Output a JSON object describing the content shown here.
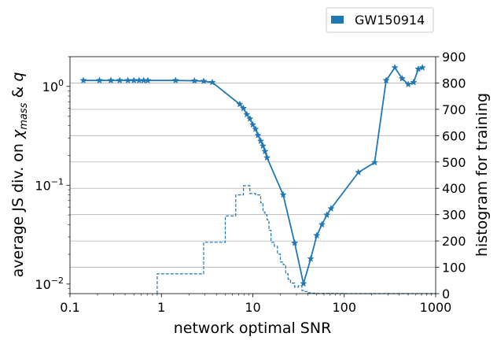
{
  "chart_data": {
    "type": "line",
    "legend": {
      "position": "top-right",
      "label": "GW150914"
    },
    "colors": {
      "series": "#1f77b4",
      "grid": "#b0b0b0",
      "axis": "#000000"
    },
    "xlabel": "network optimal SNR",
    "ylabel": "average JS div. on χmass & q",
    "ylabel_parts": {
      "prefix": "average JS div. on ",
      "symbol": "χ",
      "subscript": "mass",
      "suffix": " & ",
      "q": "q"
    },
    "y2label": "histogram for training",
    "x_scale": "log",
    "y_scale": "log",
    "xlim": [
      0.1,
      1000
    ],
    "ylim": [
      0.008,
      2.0
    ],
    "y2lim": [
      0,
      900
    ],
    "grid": {
      "y2_major": true,
      "x": false
    },
    "x_ticks": [
      {
        "value": 0.1,
        "label": "0.1"
      },
      {
        "value": 1,
        "label": "1"
      },
      {
        "value": 10,
        "label": "10"
      },
      {
        "value": 100,
        "label": "100"
      },
      {
        "value": 1000,
        "label": "1000"
      }
    ],
    "y_ticks": [
      {
        "value": 0.01,
        "base": "10",
        "exp": "−2"
      },
      {
        "value": 0.1,
        "base": "10",
        "exp": "−1"
      },
      {
        "value": 1,
        "base": "10",
        "exp": "0"
      }
    ],
    "y2_ticks": [
      {
        "value": 0,
        "label": "0"
      },
      {
        "value": 100,
        "label": "100"
      },
      {
        "value": 200,
        "label": "200"
      },
      {
        "value": 300,
        "label": "300"
      },
      {
        "value": 400,
        "label": "400"
      },
      {
        "value": 500,
        "label": "500"
      },
      {
        "value": 600,
        "label": "600"
      },
      {
        "value": 700,
        "label": "700"
      },
      {
        "value": 800,
        "label": "800"
      },
      {
        "value": 900,
        "label": "900"
      }
    ],
    "series": [
      {
        "name": "GW150914",
        "marker": "star",
        "x": [
          0.14,
          0.21,
          0.28,
          0.35,
          0.43,
          0.5,
          0.57,
          0.64,
          0.71,
          1.43,
          2.3,
          2.9,
          3.6,
          7.2,
          7.9,
          8.6,
          9.3,
          10.0,
          10.7,
          11.4,
          12.2,
          12.9,
          13.6,
          14.3,
          21.5,
          28.7,
          35.8,
          43.0,
          50.0,
          57.0,
          64.5,
          71.6,
          143,
          215,
          287,
          358,
          430,
          502,
          573,
          645,
          716
        ],
        "y": [
          1.15,
          1.15,
          1.15,
          1.15,
          1.15,
          1.15,
          1.15,
          1.15,
          1.15,
          1.15,
          1.14,
          1.13,
          1.1,
          0.66,
          0.6,
          0.52,
          0.47,
          0.41,
          0.37,
          0.32,
          0.28,
          0.25,
          0.22,
          0.19,
          0.08,
          0.026,
          0.0101,
          0.018,
          0.031,
          0.04,
          0.05,
          0.058,
          0.135,
          0.17,
          1.15,
          1.55,
          1.2,
          1.05,
          1.1,
          1.5,
          1.55
        ]
      }
    ],
    "histogram": {
      "style": "step-dashed",
      "axis": "right",
      "bin_edges": [
        0.9,
        2.2,
        2.9,
        3.6,
        4.3,
        5.0,
        5.7,
        6.5,
        7.2,
        7.9,
        8.6,
        9.3,
        10.0,
        10.7,
        11.4,
        12.2,
        12.9,
        13.6,
        14.3,
        15.0,
        15.8,
        17.2,
        18.6,
        20.0,
        21.5,
        22.9,
        24.3,
        25.8,
        28.7,
        31.5,
        34.4,
        37.2,
        40.1,
        43.0,
        50.0,
        57.3,
        71.6,
        100,
        1000
      ],
      "counts": [
        75,
        75,
        195,
        195,
        195,
        295,
        295,
        375,
        375,
        410,
        410,
        380,
        380,
        375,
        375,
        345,
        310,
        300,
        280,
        240,
        195,
        180,
        150,
        120,
        110,
        75,
        55,
        40,
        25,
        30,
        12,
        8,
        3,
        2,
        1,
        1,
        1,
        0
      ]
    }
  }
}
